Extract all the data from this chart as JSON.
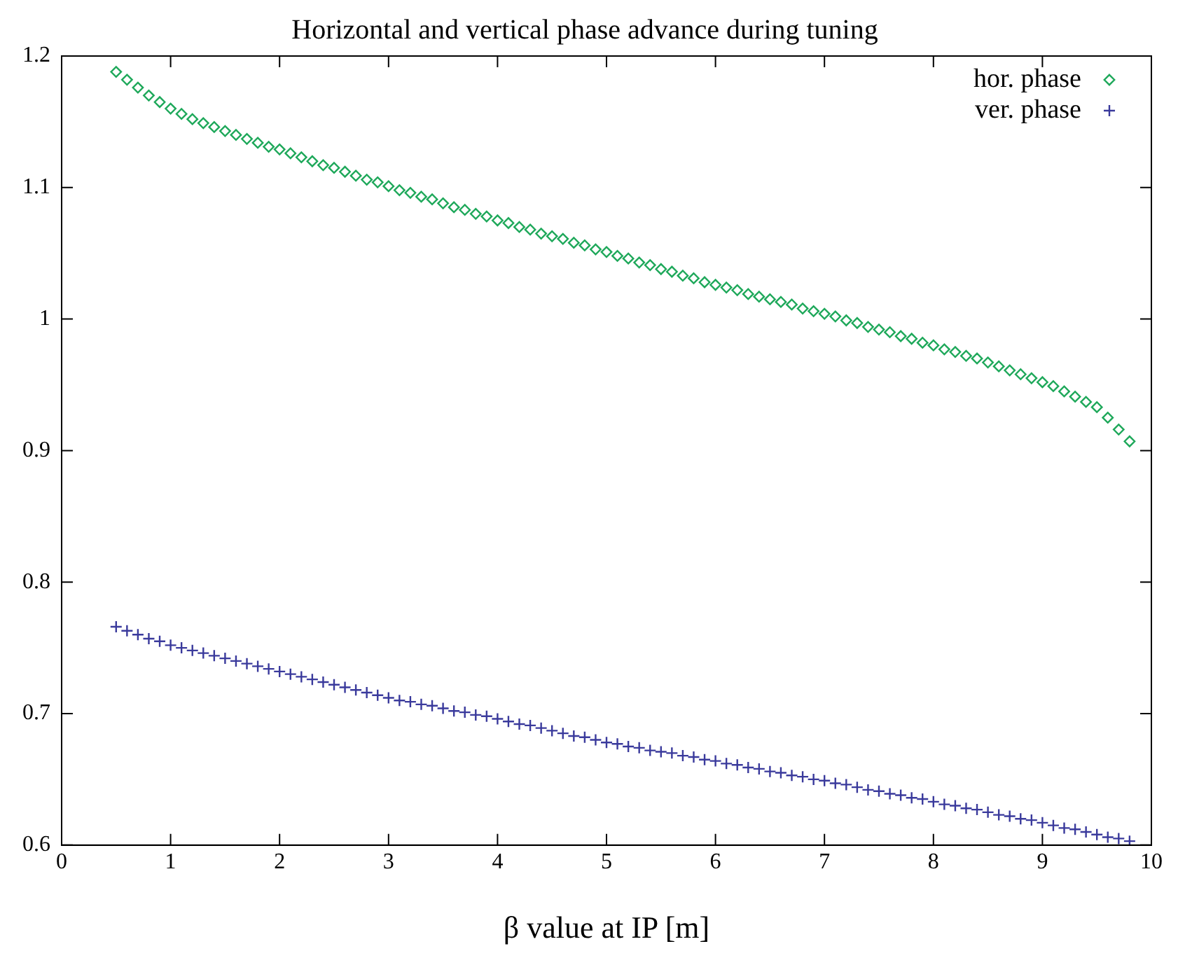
{
  "chart_data": {
    "type": "scatter",
    "title": "Horizontal and vertical phase advance during tuning",
    "xlabel": "β value at IP [m]",
    "x": [
      0.5,
      0.6,
      0.7,
      0.8,
      0.9,
      1.0,
      1.1,
      1.2,
      1.3,
      1.4,
      1.5,
      1.6,
      1.7,
      1.8,
      1.9,
      2.0,
      2.1,
      2.2,
      2.3,
      2.4,
      2.5,
      2.6,
      2.7,
      2.8,
      2.9,
      3.0,
      3.1,
      3.2,
      3.3,
      3.4,
      3.5,
      3.6,
      3.7,
      3.8,
      3.9,
      4.0,
      4.1,
      4.2,
      4.3,
      4.4,
      4.5,
      4.6,
      4.7,
      4.8,
      4.9,
      5.0,
      5.1,
      5.2,
      5.3,
      5.4,
      5.5,
      5.6,
      5.7,
      5.8,
      5.9,
      6.0,
      6.1,
      6.2,
      6.3,
      6.4,
      6.5,
      6.6,
      6.7,
      6.8,
      6.9,
      7.0,
      7.1,
      7.2,
      7.3,
      7.4,
      7.5,
      7.6,
      7.7,
      7.8,
      7.9,
      8.0,
      8.1,
      8.2,
      8.3,
      8.4,
      8.5,
      8.6,
      8.7,
      8.8,
      8.9,
      9.0,
      9.1,
      9.2,
      9.3,
      9.4,
      9.5,
      9.6,
      9.7,
      9.8
    ],
    "series": [
      {
        "name": "hor. phase",
        "color": "#1ea85a",
        "marker": "diamond",
        "values": [
          1.188,
          1.182,
          1.176,
          1.17,
          1.165,
          1.16,
          1.156,
          1.152,
          1.149,
          1.146,
          1.143,
          1.14,
          1.137,
          1.134,
          1.131,
          1.129,
          1.126,
          1.123,
          1.12,
          1.117,
          1.115,
          1.112,
          1.109,
          1.106,
          1.104,
          1.101,
          1.098,
          1.096,
          1.093,
          1.091,
          1.088,
          1.085,
          1.083,
          1.08,
          1.078,
          1.075,
          1.073,
          1.07,
          1.068,
          1.065,
          1.063,
          1.061,
          1.058,
          1.056,
          1.053,
          1.051,
          1.048,
          1.046,
          1.043,
          1.041,
          1.038,
          1.036,
          1.033,
          1.031,
          1.028,
          1.026,
          1.024,
          1.022,
          1.019,
          1.017,
          1.015,
          1.013,
          1.011,
          1.008,
          1.006,
          1.004,
          1.002,
          0.999,
          0.997,
          0.994,
          0.992,
          0.99,
          0.987,
          0.985,
          0.982,
          0.98,
          0.977,
          0.975,
          0.972,
          0.97,
          0.967,
          0.964,
          0.961,
          0.958,
          0.955,
          0.952,
          0.949,
          0.945,
          0.941,
          0.937,
          0.933,
          0.925,
          0.916,
          0.907
        ]
      },
      {
        "name": "ver. phase",
        "color": "#3a3a9c",
        "marker": "cross",
        "values": [
          0.766,
          0.763,
          0.76,
          0.757,
          0.755,
          0.752,
          0.75,
          0.748,
          0.746,
          0.744,
          0.742,
          0.74,
          0.738,
          0.736,
          0.734,
          0.732,
          0.73,
          0.728,
          0.726,
          0.724,
          0.722,
          0.72,
          0.718,
          0.716,
          0.714,
          0.712,
          0.71,
          0.709,
          0.707,
          0.706,
          0.704,
          0.702,
          0.701,
          0.699,
          0.698,
          0.696,
          0.694,
          0.692,
          0.691,
          0.689,
          0.687,
          0.685,
          0.683,
          0.682,
          0.68,
          0.678,
          0.677,
          0.675,
          0.674,
          0.672,
          0.671,
          0.67,
          0.668,
          0.667,
          0.665,
          0.664,
          0.662,
          0.661,
          0.659,
          0.658,
          0.656,
          0.655,
          0.653,
          0.652,
          0.65,
          0.649,
          0.647,
          0.646,
          0.644,
          0.642,
          0.641,
          0.639,
          0.638,
          0.636,
          0.635,
          0.633,
          0.631,
          0.63,
          0.628,
          0.627,
          0.625,
          0.623,
          0.622,
          0.62,
          0.619,
          0.617,
          0.615,
          0.613,
          0.612,
          0.61,
          0.608,
          0.606,
          0.605,
          0.603
        ]
      }
    ],
    "xlim": [
      0,
      10
    ],
    "xticks": [
      0,
      1,
      2,
      3,
      4,
      5,
      6,
      7,
      8,
      9,
      10
    ],
    "ylim": [
      0.6,
      1.2
    ],
    "yticks": [
      0.6,
      0.7,
      0.8,
      0.9,
      1,
      1.1,
      1.2
    ],
    "grid": false,
    "legend": "top right"
  }
}
